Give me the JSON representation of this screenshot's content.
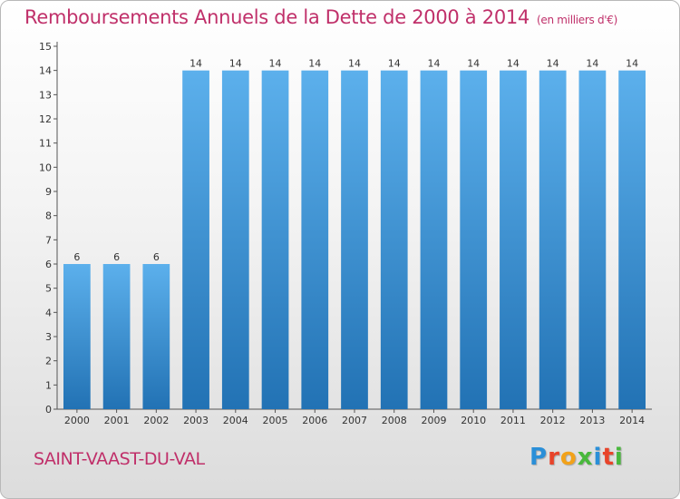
{
  "header": {
    "title": "Remboursements Annuels de la Dette de 2000 à 2014",
    "subtitle": "(en milliers d'€)"
  },
  "footer": {
    "city": "SAINT-VAAST-DU-VAL",
    "logo_letters": [
      "P",
      "r",
      "o",
      "x",
      "i",
      "t",
      "i"
    ],
    "logo_colors": [
      "#2a8fd8",
      "#e8442a",
      "#f2a21a",
      "#48b83c",
      "#2a8fd8",
      "#e8442a",
      "#48b83c"
    ]
  },
  "chart_data": {
    "type": "bar",
    "categories": [
      "2000",
      "2001",
      "2002",
      "2003",
      "2004",
      "2005",
      "2006",
      "2007",
      "2008",
      "2009",
      "2010",
      "2011",
      "2012",
      "2013",
      "2014"
    ],
    "values": [
      6,
      6,
      6,
      14,
      14,
      14,
      14,
      14,
      14,
      14,
      14,
      14,
      14,
      14,
      14
    ],
    "title": "Remboursements Annuels de la Dette de 2000 à 2014",
    "ylim": [
      0,
      15
    ],
    "yticks": [
      0,
      1,
      2,
      3,
      4,
      5,
      6,
      7,
      8,
      9,
      10,
      11,
      12,
      13,
      14,
      15
    ],
    "grid": false,
    "bar_color_light": "#5cb0ec",
    "bar_color_dark": "#2272b4"
  }
}
